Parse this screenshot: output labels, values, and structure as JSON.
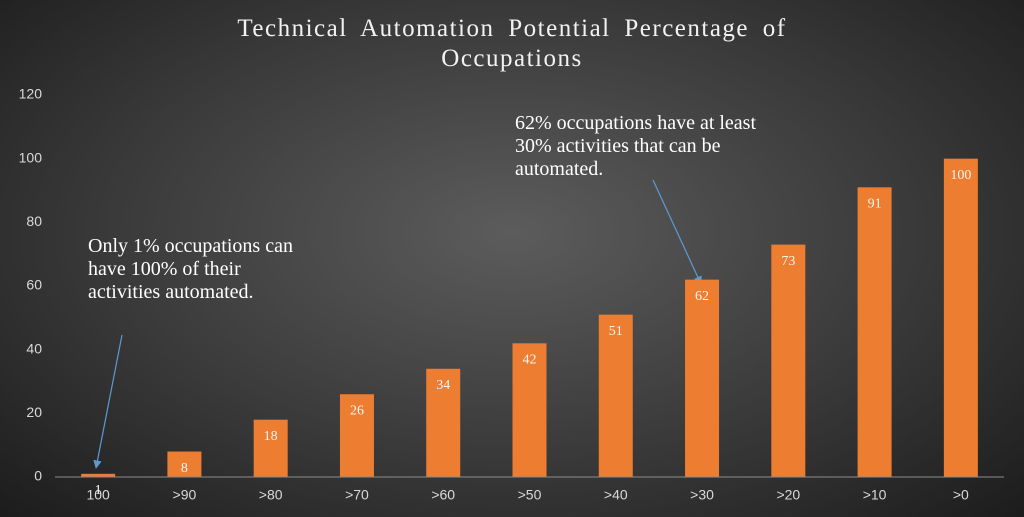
{
  "chart_data": {
    "type": "bar",
    "title": "Technical Automation Potential Percentage of Occupations",
    "categories": [
      "100",
      ">90",
      ">80",
      ">70",
      ">60",
      ">50",
      ">40",
      ">30",
      ">20",
      ">10",
      ">0"
    ],
    "values": [
      1,
      8,
      18,
      26,
      34,
      42,
      51,
      62,
      73,
      91,
      100
    ],
    "color": "#ed7d31",
    "ylim": [
      0,
      120
    ],
    "yticks": [
      0,
      20,
      40,
      60,
      80,
      100,
      120
    ],
    "grid": false,
    "annotations": [
      "Only 1% occupations can have 100% of their activities automated.",
      "62% occupations have at least 30% activities that can be automated."
    ]
  }
}
